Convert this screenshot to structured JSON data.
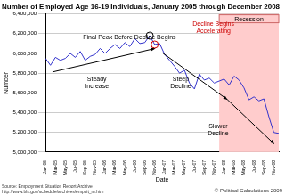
{
  "chart_data": {
    "type": "line",
    "title": "Number of Employed Age 16-19 Individuals, January 2005 through December 2008",
    "x_label": "Date",
    "y_label": "Number",
    "categories": [
      "Jan-05",
      null,
      "Mar-05",
      null,
      "May-05",
      null,
      "Jul-05",
      null,
      "Sep-05",
      null,
      "Nov-05",
      null,
      "Jan-06",
      null,
      "Mar-06",
      null,
      "May-06",
      null,
      "Jul-06",
      null,
      "Sep-06",
      null,
      "Nov-06",
      null,
      "Jan-07",
      null,
      "Mar-07",
      null,
      "May-07",
      null,
      "Jul-07",
      null,
      "Sep-07",
      null,
      "Nov-07",
      null,
      "Jan-08",
      null,
      "Mar-08",
      null,
      "May-08",
      null,
      "Jul-08",
      null,
      "Sep-08",
      null,
      "Nov-08",
      null
    ],
    "values": [
      5950000,
      5880000,
      5960000,
      5930000,
      5950000,
      6000000,
      5960000,
      6020000,
      5930000,
      5970000,
      5990000,
      6050000,
      6000000,
      6050000,
      6090000,
      6050000,
      6110000,
      6070000,
      6150000,
      6100000,
      6110000,
      6180000,
      6090000,
      6100000,
      5990000,
      5930000,
      5870000,
      5800000,
      5830000,
      5700000,
      5640000,
      5790000,
      5730000,
      5750000,
      5700000,
      5720000,
      5740000,
      5680000,
      5770000,
      5730000,
      5650000,
      5530000,
      5560000,
      5520000,
      5540000,
      5360000,
      5200000,
      5190000
    ],
    "color": "#3333cc",
    "ylim": [
      5000000,
      6400000
    ],
    "yticks": [
      {
        "value": 5000000,
        "label": "5,000,000"
      },
      {
        "value": 5200000,
        "label": "5,200,000"
      },
      {
        "value": 5400000,
        "label": "5,400,000"
      },
      {
        "value": 5600000,
        "label": "5,600,000"
      },
      {
        "value": 5800000,
        "label": "5,800,000"
      },
      {
        "value": 6000000,
        "label": "6,000,000"
      },
      {
        "value": 6200000,
        "label": "6,200,000"
      },
      {
        "value": 6400000,
        "label": "6,400,000"
      }
    ],
    "grid": true,
    "legend": false,
    "recession": {
      "label": "Recession",
      "x_start": 35,
      "x_end": 47,
      "color": "#ffcccc"
    },
    "annotations": [
      {
        "text": [
          "Final Peak Before Decline Begins"
        ],
        "color": "#000000"
      },
      {
        "text": [
          "Decline Begins",
          "Accelerating"
        ],
        "color": "#cc0000"
      },
      {
        "text": [
          "Steady",
          "Increase"
        ],
        "color": "#000000"
      },
      {
        "text": [
          "Steep",
          "Decline"
        ],
        "color": "#000000"
      },
      {
        "text": [
          "Slower",
          "Decline"
        ],
        "color": "#000000"
      }
    ],
    "source": [
      "Source: Employment Situation Report Archive",
      "http://www.bls.gov/schedule/archives/empsit_nr.htm"
    ],
    "credit": "© Political Calculations 2009"
  }
}
